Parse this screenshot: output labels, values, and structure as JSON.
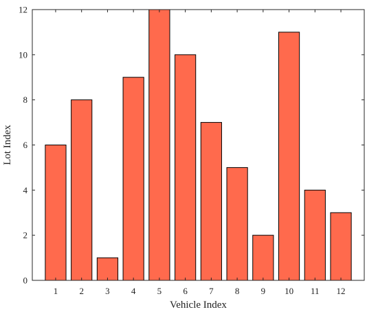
{
  "chart_data": {
    "type": "bar",
    "categories": [
      "1",
      "2",
      "3",
      "4",
      "5",
      "6",
      "7",
      "8",
      "9",
      "10",
      "11",
      "12"
    ],
    "values": [
      6,
      8,
      1,
      9,
      12,
      10,
      7,
      5,
      2,
      11,
      4,
      3
    ],
    "title": "",
    "xlabel": "Vehicle Index",
    "ylabel": "Lot Index",
    "ylim": [
      0,
      12
    ],
    "yticks": [
      0,
      2,
      4,
      6,
      8,
      10,
      12
    ],
    "bar_color": "#ff6a4d",
    "bar_edge_color": "#000000",
    "grid": false,
    "legend": "none"
  }
}
